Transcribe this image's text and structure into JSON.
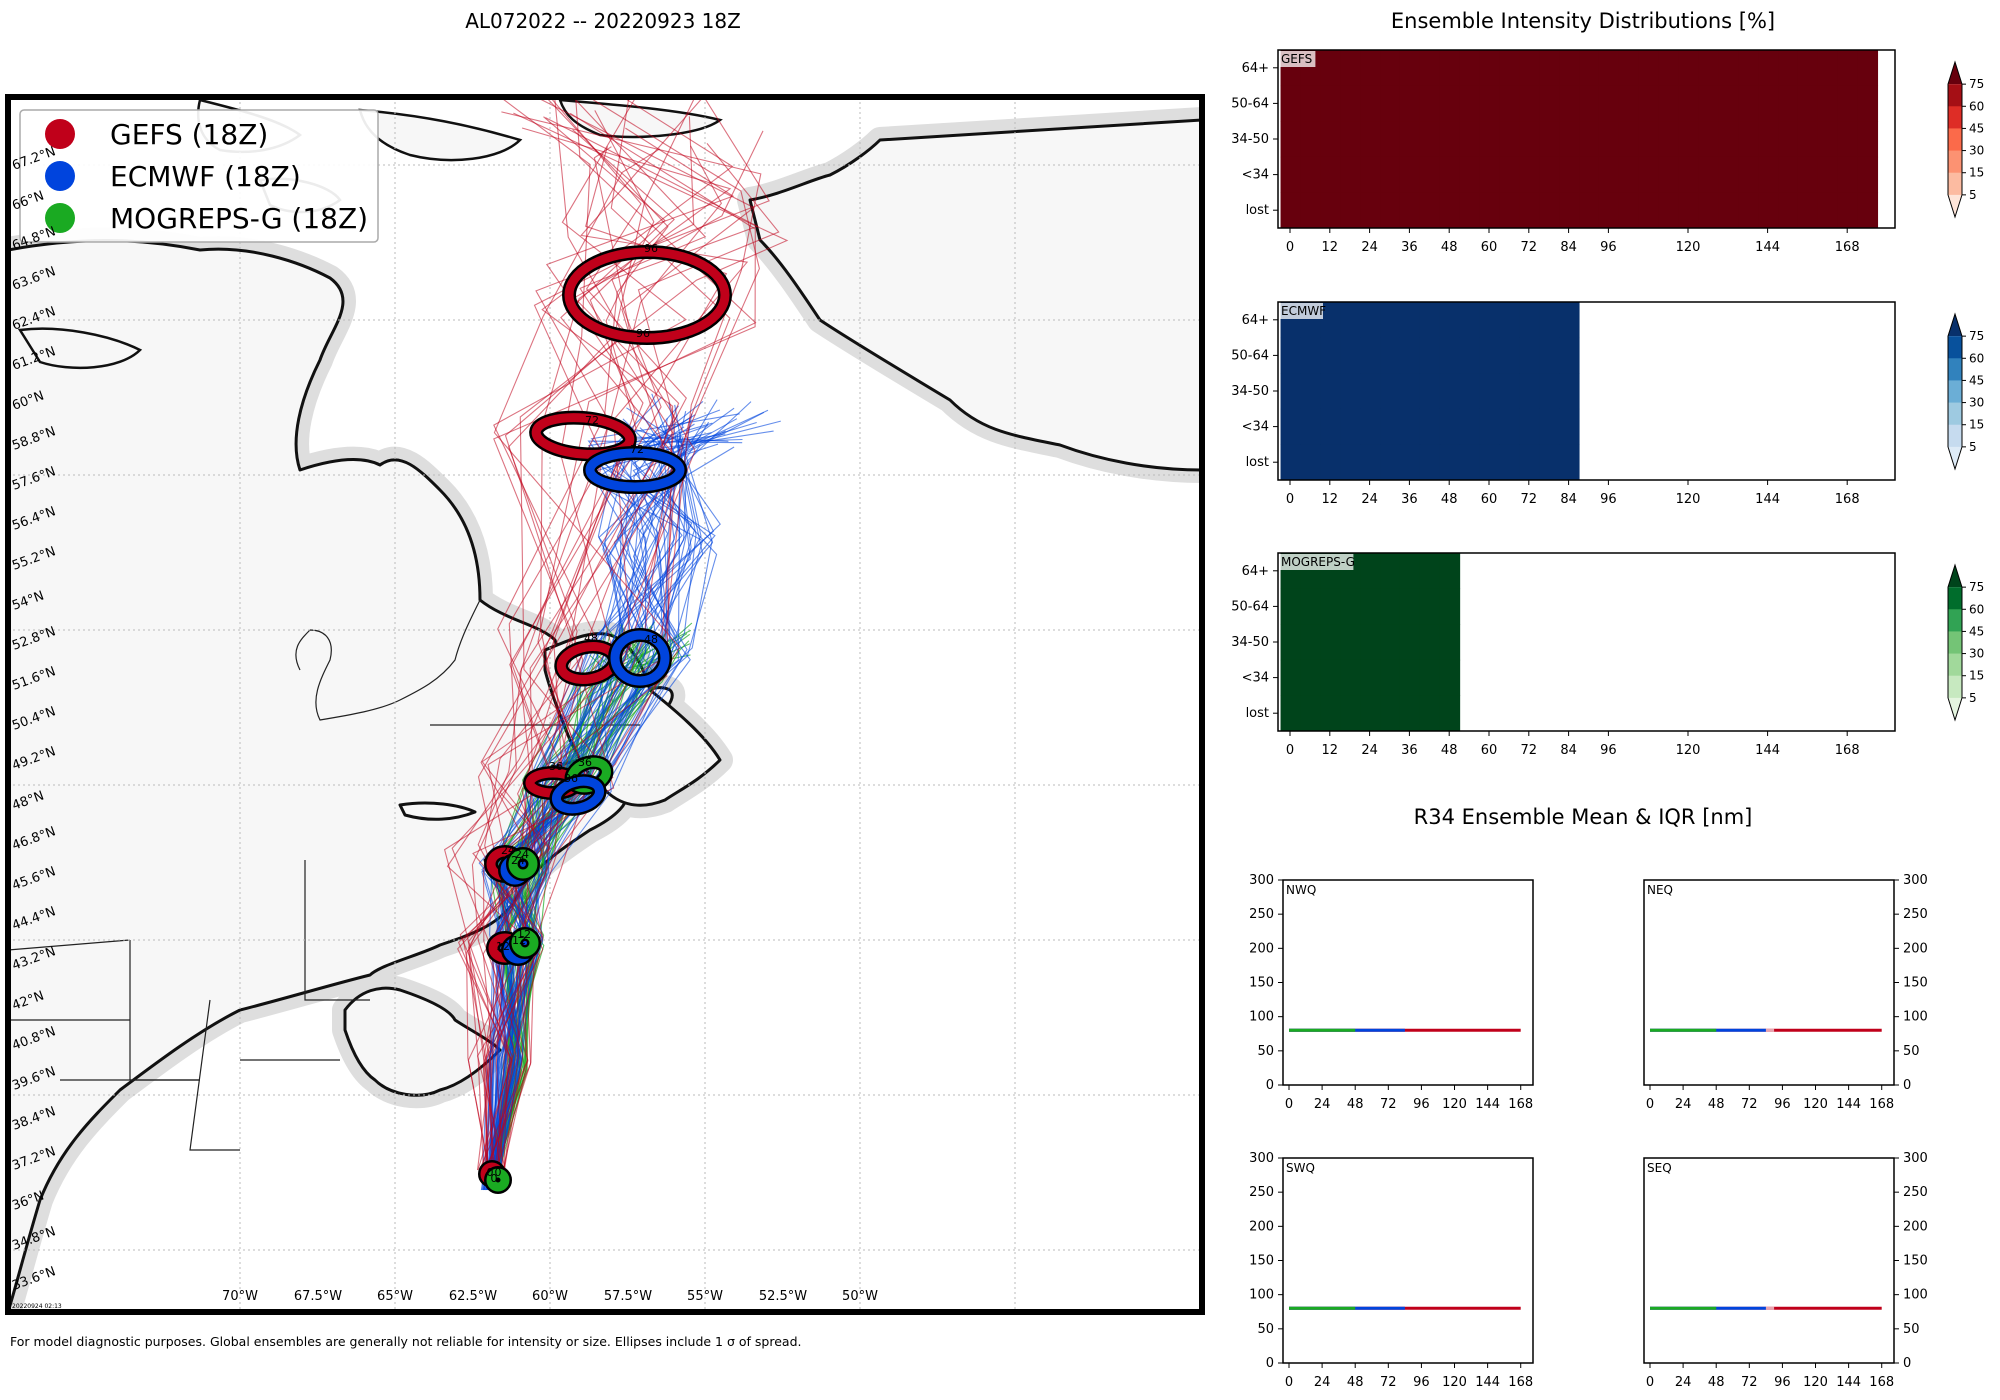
{
  "figure": {
    "main_title": "AL072022 -- 20220923 18Z",
    "right_title": "Ensemble Intensity Distributions [%]",
    "r34_title": "R34 Ensemble Mean & IQR [nm]",
    "footer": "For model diagnostic purposes. Global ensembles are generally not reliable for intensity or size. Ellipses include 1 σ of spread.",
    "timestamp": "20220924 02:13"
  },
  "colors": {
    "gefs": "#c0001a",
    "ecmwf": "#0044dd",
    "mogreps": "#1aaa22"
  },
  "map": {
    "legend": [
      {
        "label": "GEFS (18Z)",
        "color": "#c0001a"
      },
      {
        "label": "ECMWF (18Z)",
        "color": "#0044dd"
      },
      {
        "label": "MOGREPS-G (18Z)",
        "color": "#1aaa22"
      }
    ],
    "lon_labels": [
      "70°W",
      "67.5°W",
      "65°W",
      "62.5°W",
      "60°W",
      "57.5°W",
      "55°W",
      "52.5°W",
      "50°W"
    ],
    "lat_labels": [
      "67.2°N",
      "66°N",
      "64.8°N",
      "63.6°N",
      "62.4°N",
      "61.2°N",
      "60°N",
      "58.8°N",
      "57.6°N",
      "56.4°N",
      "55.2°N",
      "54°N",
      "52.8°N",
      "51.6°N",
      "50.4°N",
      "49.2°N",
      "48°N",
      "46.8°N",
      "45.6°N",
      "44.4°N",
      "43.2°N",
      "42°N",
      "40.8°N",
      "39.6°N",
      "38.4°N",
      "37.2°N",
      "36°N",
      "34.8°N",
      "33.6°N"
    ],
    "tau_labels": {
      "gefs": [
        "0",
        "12",
        "24",
        "36",
        "48",
        "72",
        "96"
      ],
      "ecmwf": [
        "0",
        "12",
        "24",
        "36",
        "48",
        "72"
      ],
      "mogreps": [
        "0",
        "12",
        "24",
        "36"
      ]
    }
  },
  "chart_data": [
    {
      "type": "heatmap",
      "name": "GEFS",
      "title": "GEFS",
      "rows": [
        "64+",
        "50-64",
        "34-50",
        "<34",
        "lost"
      ],
      "x_ticks": [
        "0",
        "12",
        "24",
        "36",
        "48",
        "60",
        "72",
        "84",
        "96",
        "120",
        "144",
        "168"
      ],
      "x_hours": [
        0,
        6,
        12,
        18,
        24,
        30,
        36,
        42,
        48,
        54,
        60,
        66,
        72,
        78,
        84,
        90,
        96,
        102,
        108,
        114,
        120,
        126,
        132,
        138,
        144,
        150,
        156,
        162,
        168,
        174
      ],
      "values_percent": [
        [
          80,
          80,
          80,
          80,
          80,
          80,
          80,
          80,
          80,
          80,
          80,
          80,
          80,
          80,
          80,
          80,
          80,
          80,
          80,
          80,
          80,
          80,
          80,
          80,
          80,
          80,
          80,
          80,
          80,
          80
        ],
        [
          80,
          80,
          80,
          80,
          80,
          80,
          80,
          80,
          80,
          80,
          80,
          80,
          80,
          80,
          80,
          80,
          80,
          80,
          80,
          80,
          80,
          80,
          80,
          80,
          80,
          80,
          80,
          80,
          80,
          80
        ],
        [
          80,
          80,
          80,
          80,
          80,
          80,
          80,
          80,
          80,
          80,
          80,
          80,
          80,
          80,
          80,
          80,
          80,
          80,
          80,
          80,
          80,
          80,
          80,
          80,
          80,
          80,
          80,
          80,
          80,
          80
        ],
        [
          80,
          80,
          80,
          80,
          80,
          80,
          80,
          80,
          80,
          80,
          80,
          80,
          80,
          80,
          80,
          80,
          80,
          80,
          80,
          80,
          80,
          80,
          80,
          80,
          80,
          80,
          80,
          80,
          80,
          80
        ],
        [
          80,
          80,
          80,
          80,
          80,
          80,
          80,
          80,
          80,
          80,
          80,
          80,
          80,
          80,
          80,
          80,
          80,
          80,
          80,
          80,
          80,
          80,
          80,
          80,
          80,
          80,
          80,
          80,
          80,
          80
        ]
      ],
      "colorbar_ticks": [
        75,
        60,
        45,
        30,
        15,
        5
      ],
      "palette": [
        "#fee5d9",
        "#fcbba1",
        "#fc9272",
        "#fb6a4a",
        "#de2d26",
        "#a50f15",
        "#67000d"
      ]
    },
    {
      "type": "heatmap",
      "name": "ECMWF",
      "title": "ECMWF",
      "rows": [
        "64+",
        "50-64",
        "34-50",
        "<34",
        "lost"
      ],
      "x_ticks": [
        "0",
        "12",
        "24",
        "36",
        "48",
        "60",
        "72",
        "84",
        "96",
        "120",
        "144",
        "168"
      ],
      "x_hours": [
        0,
        6,
        12,
        18,
        24,
        30,
        36,
        42,
        48,
        54,
        60,
        66,
        72,
        78,
        84
      ],
      "values_percent": [
        [
          80,
          80,
          80,
          80,
          80,
          80,
          80,
          80,
          80,
          80,
          80,
          80,
          80,
          80,
          80
        ],
        [
          80,
          80,
          80,
          80,
          80,
          80,
          80,
          80,
          80,
          80,
          80,
          80,
          80,
          80,
          80
        ],
        [
          80,
          80,
          80,
          80,
          80,
          80,
          80,
          80,
          80,
          80,
          80,
          80,
          80,
          80,
          80
        ],
        [
          80,
          80,
          80,
          80,
          80,
          80,
          80,
          80,
          80,
          80,
          80,
          80,
          80,
          80,
          80
        ],
        [
          80,
          80,
          80,
          80,
          80,
          80,
          80,
          80,
          80,
          80,
          80,
          80,
          80,
          80,
          80
        ]
      ],
      "colorbar_ticks": [
        75,
        60,
        45,
        30,
        15,
        5
      ],
      "palette": [
        "#deebf7",
        "#c6dbef",
        "#9ecae1",
        "#6baed6",
        "#3182bd",
        "#08519c",
        "#08306b"
      ]
    },
    {
      "type": "heatmap",
      "name": "MOGREPS-G",
      "title": "MOGREPS-G",
      "rows": [
        "64+",
        "50-64",
        "34-50",
        "<34",
        "lost"
      ],
      "x_ticks": [
        "0",
        "12",
        "24",
        "36",
        "48",
        "60",
        "72",
        "84",
        "96",
        "120",
        "144",
        "168"
      ],
      "x_hours": [
        0,
        6,
        12,
        18,
        24,
        30,
        36,
        42,
        48
      ],
      "values_percent": [
        [
          80,
          80,
          80,
          80,
          80,
          80,
          80,
          80,
          80
        ],
        [
          80,
          80,
          80,
          80,
          80,
          80,
          80,
          80,
          80
        ],
        [
          80,
          80,
          80,
          80,
          80,
          80,
          80,
          80,
          80
        ],
        [
          80,
          80,
          80,
          80,
          80,
          80,
          80,
          80,
          80
        ],
        [
          80,
          80,
          80,
          80,
          80,
          80,
          80,
          80,
          80
        ]
      ],
      "colorbar_ticks": [
        75,
        60,
        45,
        30,
        15,
        5
      ],
      "palette": [
        "#e5f5e0",
        "#c7e9c0",
        "#a1d99b",
        "#74c476",
        "#31a354",
        "#006d2c",
        "#00441b"
      ]
    },
    {
      "type": "line",
      "name": "NWQ",
      "title": "NWQ",
      "x_ticks": [
        "0",
        "24",
        "48",
        "72",
        "96",
        "120",
        "144",
        "168"
      ],
      "ylim": [
        0,
        300
      ],
      "y_ticks": [
        "0",
        "50",
        "100",
        "150",
        "200",
        "250",
        "300"
      ],
      "y_axis": "left",
      "series": [
        {
          "name": "GEFS",
          "x": [
            0,
            6,
            12,
            18,
            24,
            30,
            36,
            42,
            48,
            54,
            60,
            66,
            72,
            78,
            84,
            90,
            96,
            102,
            108,
            114,
            120,
            126,
            132,
            138,
            144,
            150,
            156,
            162,
            168
          ],
          "values": [
            80,
            80,
            80,
            80,
            80,
            80,
            80,
            80,
            80,
            80,
            80,
            80,
            80,
            80,
            80,
            80,
            80,
            80,
            80,
            80,
            80,
            80,
            80,
            80,
            80,
            80,
            80,
            80,
            80
          ]
        },
        {
          "name": "ECMWF",
          "x": [
            0,
            6,
            12,
            18,
            24,
            30,
            36,
            42,
            48,
            54,
            60,
            66,
            72,
            78,
            84
          ],
          "values": [
            80,
            80,
            80,
            80,
            80,
            80,
            80,
            80,
            80,
            80,
            80,
            80,
            80,
            80,
            80
          ]
        },
        {
          "name": "MOGREPS-G",
          "x": [
            0,
            6,
            12,
            18,
            24,
            30,
            36,
            42,
            48
          ],
          "values": [
            80,
            80,
            80,
            80,
            80,
            80,
            80,
            80,
            80
          ]
        }
      ]
    },
    {
      "type": "line",
      "name": "NEQ",
      "title": "NEQ",
      "x_ticks": [
        "0",
        "24",
        "48",
        "72",
        "96",
        "120",
        "144",
        "168"
      ],
      "ylim": [
        0,
        300
      ],
      "y_ticks": [
        "0",
        "50",
        "100",
        "150",
        "200",
        "250",
        "300"
      ],
      "y_axis": "right",
      "series": [
        {
          "name": "GEFS",
          "x": [
            0,
            6,
            12,
            18,
            24,
            30,
            36,
            42,
            48,
            54,
            60,
            66,
            72,
            78,
            84,
            90,
            96,
            102,
            108,
            114,
            120,
            126,
            132,
            138,
            144,
            150,
            156,
            162,
            168
          ],
          "values": [
            80,
            80,
            80,
            80,
            80,
            80,
            80,
            80,
            80,
            80,
            80,
            80,
            80,
            80,
            80,
            80,
            80,
            80,
            80,
            80,
            80,
            80,
            80,
            80,
            80,
            80,
            80,
            80,
            80
          ]
        },
        {
          "name": "GEFS-IQR",
          "x": [
            0,
            6,
            12,
            18,
            24,
            30,
            36,
            42,
            48,
            54,
            60,
            66,
            72,
            78,
            84,
            90
          ],
          "values": [
            80,
            80,
            80,
            80,
            80,
            80,
            80,
            80,
            80,
            80,
            80,
            80,
            80,
            80,
            80,
            80
          ]
        },
        {
          "name": "ECMWF",
          "x": [
            0,
            6,
            12,
            18,
            24,
            30,
            36,
            42,
            48,
            54,
            60,
            66,
            72,
            78,
            84
          ],
          "values": [
            80,
            80,
            80,
            80,
            80,
            80,
            80,
            80,
            80,
            80,
            80,
            80,
            80,
            80,
            80
          ]
        },
        {
          "name": "MOGREPS-G",
          "x": [
            0,
            6,
            12,
            18,
            24,
            30,
            36,
            42,
            48
          ],
          "values": [
            80,
            80,
            80,
            80,
            80,
            80,
            80,
            80,
            80
          ]
        }
      ]
    },
    {
      "type": "line",
      "name": "SWQ",
      "title": "SWQ",
      "x_ticks": [
        "0",
        "24",
        "48",
        "72",
        "96",
        "120",
        "144",
        "168"
      ],
      "ylim": [
        0,
        300
      ],
      "y_ticks": [
        "0",
        "50",
        "100",
        "150",
        "200",
        "250",
        "300"
      ],
      "y_axis": "left",
      "series": [
        {
          "name": "GEFS",
          "x": [
            0,
            6,
            12,
            18,
            24,
            30,
            36,
            42,
            48,
            54,
            60,
            66,
            72,
            78,
            84,
            90,
            96,
            102,
            108,
            114,
            120,
            126,
            132,
            138,
            144,
            150,
            156,
            162,
            168
          ],
          "values": [
            80,
            80,
            80,
            80,
            80,
            80,
            80,
            80,
            80,
            80,
            80,
            80,
            80,
            80,
            80,
            80,
            80,
            80,
            80,
            80,
            80,
            80,
            80,
            80,
            80,
            80,
            80,
            80,
            80
          ]
        },
        {
          "name": "ECMWF",
          "x": [
            0,
            6,
            12,
            18,
            24,
            30,
            36,
            42,
            48,
            54,
            60,
            66,
            72,
            78,
            84
          ],
          "values": [
            80,
            80,
            80,
            80,
            80,
            80,
            80,
            80,
            80,
            80,
            80,
            80,
            80,
            80,
            80
          ]
        },
        {
          "name": "MOGREPS-G",
          "x": [
            0,
            6,
            12,
            18,
            24,
            30,
            36,
            42,
            48
          ],
          "values": [
            80,
            80,
            80,
            80,
            80,
            80,
            80,
            80,
            80
          ]
        }
      ]
    },
    {
      "type": "line",
      "name": "SEQ",
      "title": "SEQ",
      "x_ticks": [
        "0",
        "24",
        "48",
        "72",
        "96",
        "120",
        "144",
        "168"
      ],
      "ylim": [
        0,
        300
      ],
      "y_ticks": [
        "0",
        "50",
        "100",
        "150",
        "200",
        "250",
        "300"
      ],
      "y_axis": "right",
      "series": [
        {
          "name": "GEFS",
          "x": [
            0,
            6,
            12,
            18,
            24,
            30,
            36,
            42,
            48,
            54,
            60,
            66,
            72,
            78,
            84,
            90,
            96,
            102,
            108,
            114,
            120,
            126,
            132,
            138,
            144,
            150,
            156,
            162,
            168
          ],
          "values": [
            80,
            80,
            80,
            80,
            80,
            80,
            80,
            80,
            80,
            80,
            80,
            80,
            80,
            80,
            80,
            80,
            80,
            80,
            80,
            80,
            80,
            80,
            80,
            80,
            80,
            80,
            80,
            80,
            80
          ]
        },
        {
          "name": "GEFS-IQR",
          "x": [
            0,
            6,
            12,
            18,
            24,
            30,
            36,
            42,
            48,
            54,
            60,
            66,
            72,
            78,
            84,
            90
          ],
          "values": [
            80,
            80,
            80,
            80,
            80,
            80,
            80,
            80,
            80,
            80,
            80,
            80,
            80,
            80,
            80,
            80
          ]
        },
        {
          "name": "ECMWF",
          "x": [
            0,
            6,
            12,
            18,
            24,
            30,
            36,
            42,
            48,
            54,
            60,
            66,
            72,
            78,
            84
          ],
          "values": [
            80,
            80,
            80,
            80,
            80,
            80,
            80,
            80,
            80,
            80,
            80,
            80,
            80,
            80,
            80
          ]
        },
        {
          "name": "MOGREPS-G",
          "x": [
            0,
            6,
            12,
            18,
            24,
            30,
            36,
            42,
            48
          ],
          "values": [
            80,
            80,
            80,
            80,
            80,
            80,
            80,
            80,
            80
          ]
        }
      ]
    }
  ]
}
